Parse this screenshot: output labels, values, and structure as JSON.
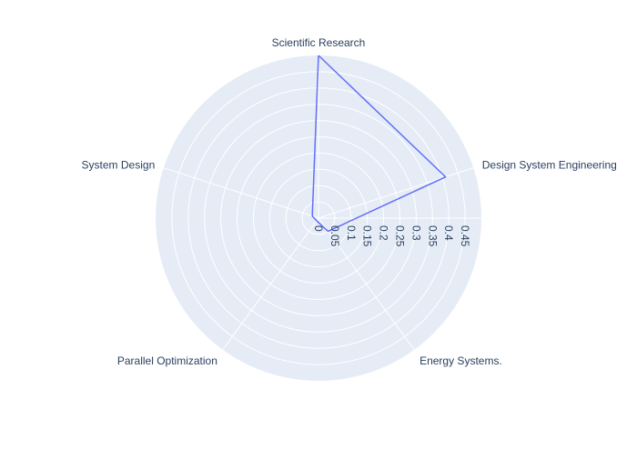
{
  "chart_data": {
    "type": "radar",
    "title": "",
    "theta": [
      "Scientific Research",
      "Design System Engineering",
      "Energy Systems.",
      "Parallel Optimization",
      "System Design"
    ],
    "series": [
      {
        "values": [
          0.5,
          0.41,
          0.05,
          0.01,
          0.02
        ],
        "color": "#636efa"
      }
    ],
    "radial_ticks": [
      "0",
      "0.05",
      "0.1",
      "0.15",
      "0.2",
      "0.25",
      "0.3",
      "0.35",
      "0.4",
      "0.45"
    ],
    "radial_tick_values": [
      0,
      0.05,
      0.1,
      0.15,
      0.2,
      0.25,
      0.3,
      0.35,
      0.4,
      0.45
    ],
    "radial_range": [
      0,
      0.5
    ],
    "grid": true,
    "background_color": "#e5ecf6",
    "grid_color": "#ffffff",
    "text_color": "#2a3f5f"
  }
}
